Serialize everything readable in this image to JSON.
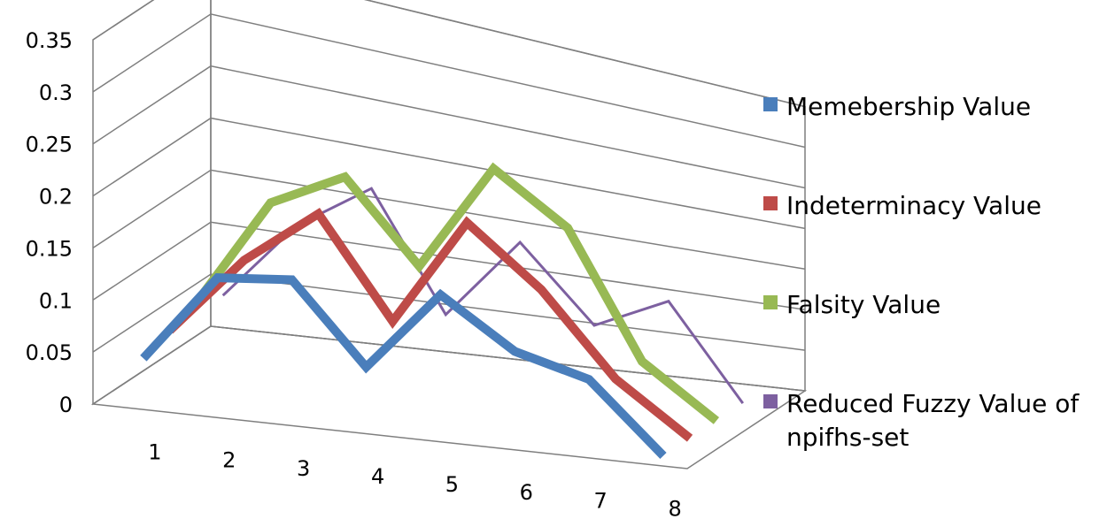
{
  "chart_data": {
    "type": "line",
    "style": "3d",
    "categories": [
      "1",
      "2",
      "3",
      "4",
      "5",
      "6",
      "7",
      "8"
    ],
    "ylim": [
      0,
      0.35
    ],
    "yticks": [
      "0",
      "0.05",
      "0.1",
      "0.15",
      "0.2",
      "0.25",
      "0.3",
      "0.35"
    ],
    "grid": true,
    "legend_position": "right",
    "series": [
      {
        "name": "Memebership Value",
        "color": "#4a7ebb",
        "values": [
          0.04,
          0.13,
          0.14,
          0.06,
          0.15,
          0.1,
          0.08,
          0.0
        ]
      },
      {
        "name": "Indeterminacy Value",
        "color": "#be4b48",
        "values": [
          0.05,
          0.13,
          0.19,
          0.09,
          0.21,
          0.15,
          0.06,
          0.0
        ]
      },
      {
        "name": "Falsity Value",
        "color": "#98b954",
        "values": [
          0.06,
          0.17,
          0.21,
          0.13,
          0.25,
          0.2,
          0.06,
          0.0
        ]
      },
      {
        "name": "Reduced Fuzzy Value  of npifhs-set",
        "color": "#7d60a0",
        "values": [
          0.05,
          0.13,
          0.18,
          0.06,
          0.15,
          0.07,
          0.11,
          0.0
        ]
      }
    ]
  }
}
